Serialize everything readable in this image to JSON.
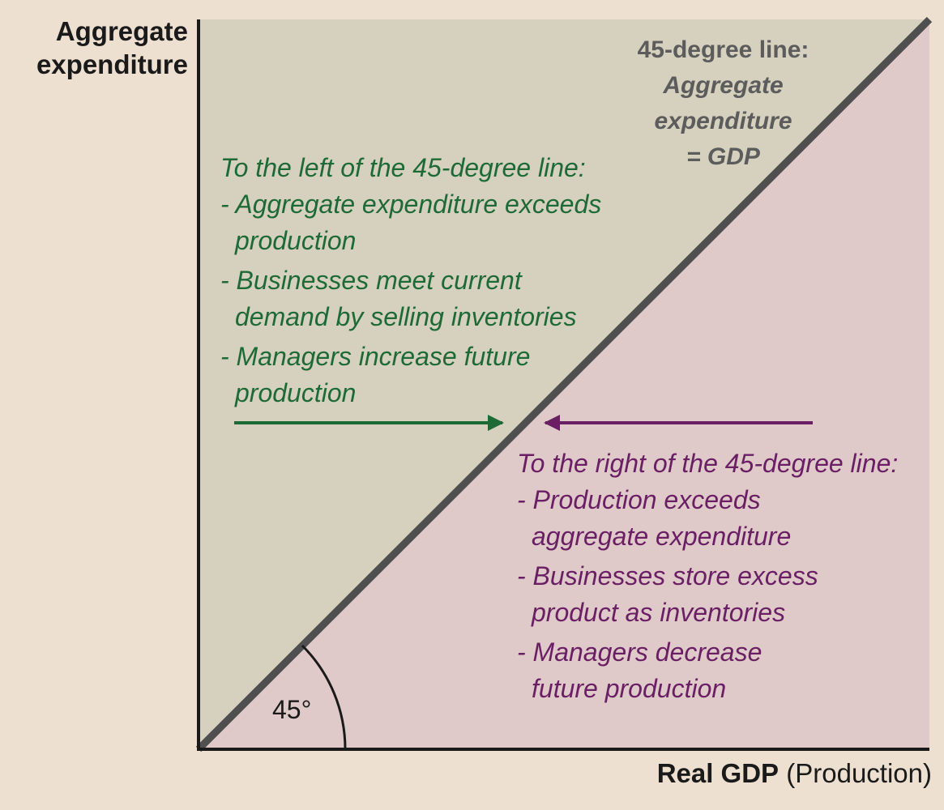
{
  "colors": {
    "background": "#ede0d1",
    "upper_region": "#d5d1be",
    "lower_region": "#dfc9c9",
    "diagonal_line": "#4f4f4f",
    "left_text": "#1e6a36",
    "right_text": "#6a1f65",
    "axes": "#1a1a1a"
  },
  "y_axis": {
    "label_line1": "Aggregate",
    "label_line2": "expenditure"
  },
  "x_axis": {
    "label_bold": "Real GDP",
    "label_rest": " (Production)"
  },
  "diagonal": {
    "title": "45-degree line:",
    "line2": "Aggregate",
    "line3": "expenditure",
    "line4": "= GDP"
  },
  "angle_label": "45°",
  "left_region": {
    "heading": "To the left of the 45-degree line:",
    "points": [
      {
        "line1": "- Aggregate expenditure exceeds",
        "line2": "production"
      },
      {
        "line1": "- Businesses meet current",
        "line2": "demand by selling inventories"
      },
      {
        "line1": "- Managers increase future",
        "line2": "production"
      }
    ],
    "arrow_direction": "right"
  },
  "right_region": {
    "heading": "To the right of the 45-degree line:",
    "points": [
      {
        "line1": "- Production exceeds",
        "line2": "aggregate expenditure"
      },
      {
        "line1": "- Businesses store excess",
        "line2": "product as inventories"
      },
      {
        "line1": "- Managers decrease",
        "line2": "future production"
      }
    ],
    "arrow_direction": "left"
  }
}
